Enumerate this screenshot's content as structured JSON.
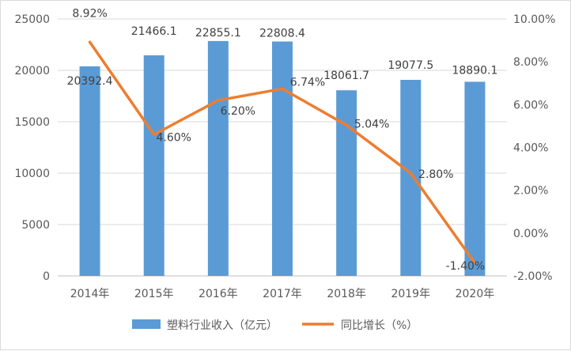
{
  "chart_data": {
    "type": "bar+line",
    "categories": [
      "2014年",
      "2015年",
      "2016年",
      "2017年",
      "2018年",
      "2019年",
      "2020年"
    ],
    "series": [
      {
        "name": "塑料行业收入（亿元）",
        "type": "bar",
        "axis": "left",
        "color": "#5B9BD5",
        "values": [
          20392.4,
          21466.1,
          22855.1,
          22808.4,
          18061.7,
          19077.5,
          18890.1
        ],
        "labels": [
          "20392.4",
          "21466.1",
          "22855.1",
          "22808.4",
          "18061.7",
          "19077.5",
          "18890.1"
        ]
      },
      {
        "name": "同比增长（%）",
        "type": "line",
        "axis": "right",
        "color": "#ED7D31",
        "values": [
          8.92,
          4.6,
          6.2,
          6.74,
          5.04,
          2.8,
          -1.4
        ],
        "labels": [
          "8.92%",
          "4.60%",
          "6.20%",
          "6.74%",
          "5.04%",
          "2.80%",
          "-1.40%"
        ]
      }
    ],
    "left_axis": {
      "range": [
        0,
        25000
      ],
      "ticks": [
        "0",
        "5000",
        "10000",
        "15000",
        "20000",
        "25000"
      ]
    },
    "right_axis": {
      "range": [
        -2,
        10
      ],
      "ticks": [
        "-2.00%",
        "0.00%",
        "2.00%",
        "4.00%",
        "6.00%",
        "8.00%",
        "10.00%"
      ]
    },
    "grid": true,
    "legend_position": "bottom"
  }
}
